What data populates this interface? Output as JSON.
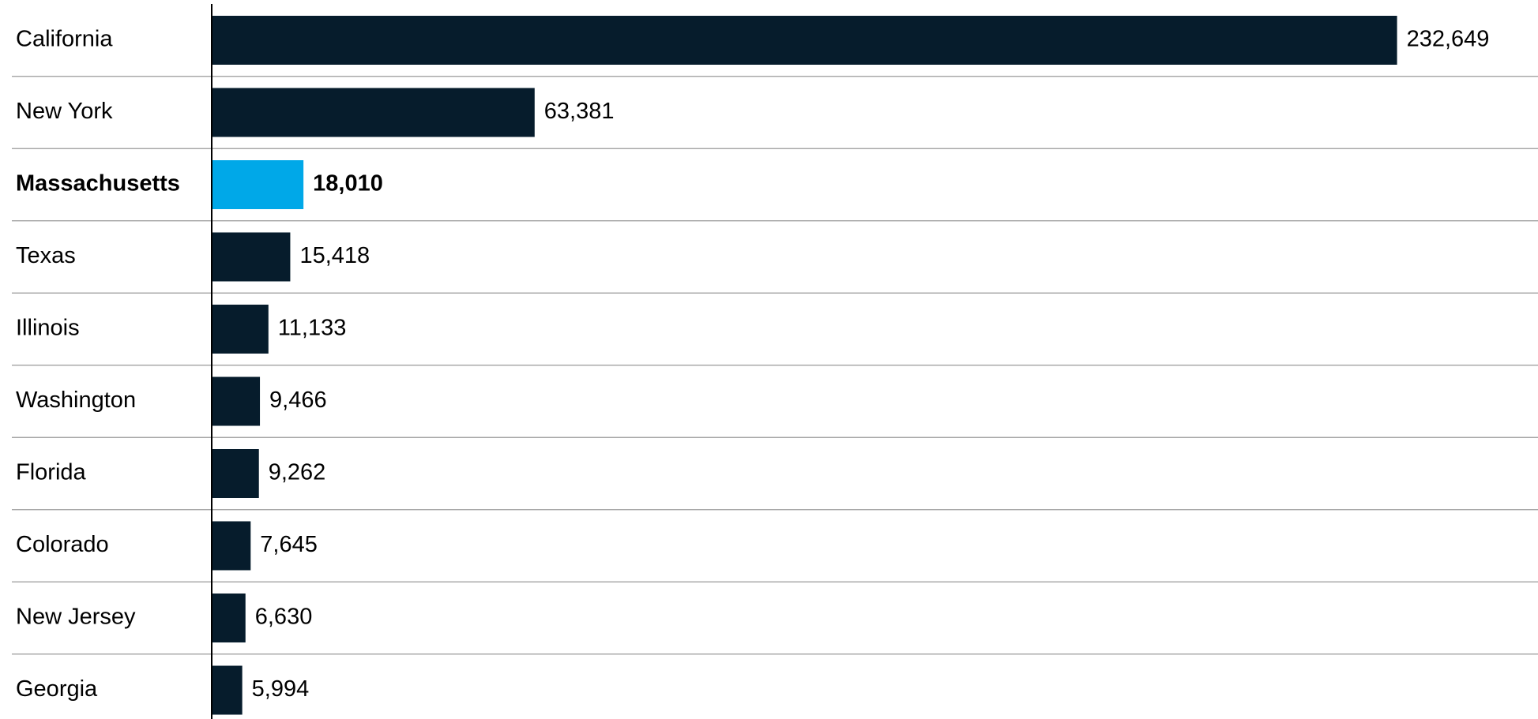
{
  "chart_data": {
    "type": "bar",
    "orientation": "horizontal",
    "categories": [
      "California",
      "New York",
      "Massachusetts",
      "Texas",
      "Illinois",
      "Washington",
      "Florida",
      "Colorado",
      "New Jersey",
      "Georgia"
    ],
    "values": [
      232649,
      63381,
      18010,
      15418,
      11133,
      9466,
      9262,
      7645,
      6630,
      5994
    ],
    "value_labels": [
      "232,649",
      "63,381",
      "18,010",
      "15,418",
      "11,133",
      "9,466",
      "9,262",
      "7,645",
      "6,630",
      "5,994"
    ],
    "colors": [
      "#061c2c",
      "#061c2c",
      "#00a8e8",
      "#061c2c",
      "#061c2c",
      "#061c2c",
      "#061c2c",
      "#061c2c",
      "#061c2c",
      "#061c2c"
    ],
    "highlight": 2,
    "xlim": [
      0,
      260000
    ]
  }
}
